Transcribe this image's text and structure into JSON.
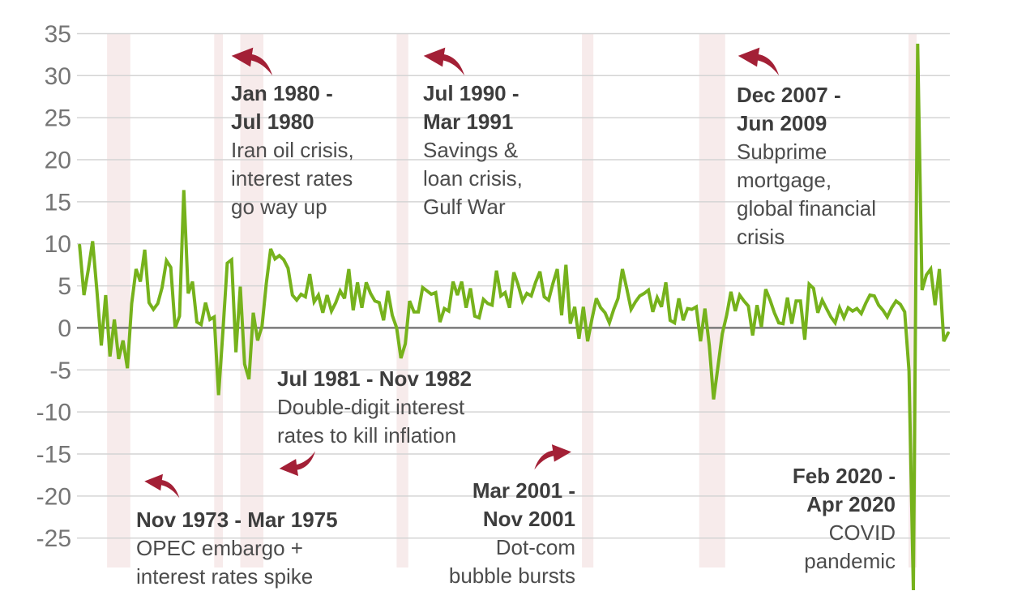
{
  "chart_data": {
    "type": "line",
    "title": "",
    "xlabel": "",
    "ylabel": "",
    "description_note": "US quarterly GDP growth (annualized %), line chart with recession shading",
    "t_start": 1972.25,
    "t_step": 0.25,
    "xlim": [
      1972.1,
      2022.35
    ],
    "ylim": [
      -28.5,
      39.0
    ],
    "yticks": [
      35,
      30,
      25,
      20,
      15,
      10,
      5,
      0,
      -5,
      -10,
      -15,
      -20,
      -25
    ],
    "grid": true,
    "values": [
      9.8,
      3.9,
      6.9,
      10.3,
      4.4,
      -2.1,
      3.9,
      -3.4,
      1.0,
      -3.7,
      -1.5,
      -4.8,
      2.9,
      7.0,
      5.5,
      9.3,
      3.0,
      2.2,
      2.9,
      4.8,
      8.0,
      7.2,
      0.0,
      1.4,
      16.4,
      4.1,
      5.5,
      0.7,
      0.4,
      3.0,
      1.0,
      1.3,
      -8.0,
      -0.5,
      7.7,
      8.1,
      -2.9,
      4.9,
      -4.3,
      -6.1,
      1.8,
      -1.5,
      0.2,
      5.3,
      9.4,
      8.2,
      8.6,
      8.1,
      7.1,
      3.9,
      3.3,
      4.0,
      3.7,
      6.4,
      3.1,
      3.9,
      1.8,
      3.9,
      2.0,
      3.0,
      4.4,
      3.5,
      7.0,
      2.1,
      5.4,
      2.4,
      5.4,
      4.1,
      3.2,
      3.0,
      0.9,
      4.4,
      1.5,
      0.0,
      -3.6,
      -1.9,
      3.2,
      1.9,
      1.9,
      4.8,
      4.4,
      4.0,
      4.2,
      0.7,
      2.3,
      2.0,
      5.5,
      3.9,
      5.5,
      2.4,
      4.7,
      1.4,
      1.2,
      3.4,
      2.9,
      2.7,
      6.8,
      3.8,
      4.2,
      2.4,
      6.6,
      5.1,
      3.2,
      4.1,
      3.8,
      5.4,
      6.7,
      3.7,
      3.3,
      5.3,
      7.0,
      1.5,
      7.5,
      0.5,
      2.5,
      -1.3,
      2.5,
      -1.6,
      1.1,
      3.5,
      2.4,
      1.8,
      0.6,
      2.2,
      3.5,
      7.0,
      4.7,
      2.2,
      3.1,
      3.8,
      4.1,
      4.5,
      1.9,
      3.6,
      2.5,
      5.4,
      0.9,
      0.6,
      3.5,
      0.9,
      2.3,
      2.2,
      2.5,
      -1.6,
      2.3,
      -2.1,
      -8.5,
      -4.6,
      -0.7,
      1.5,
      4.3,
      2.0,
      3.9,
      3.2,
      2.6,
      -0.9,
      2.7,
      0.1,
      4.6,
      3.3,
      1.8,
      0.6,
      0.5,
      3.6,
      0.5,
      3.2,
      3.2,
      -1.4,
      5.2,
      4.7,
      1.8,
      3.3,
      2.3,
      1.3,
      0.6,
      2.4,
      1.2,
      2.4,
      2.0,
      2.3,
      1.7,
      2.9,
      3.9,
      3.8,
      2.7,
      2.1,
      1.3,
      2.4,
      3.2,
      2.8,
      1.9,
      -5.1,
      -31.2,
      33.8,
      4.5,
      6.3,
      7.0,
      2.7,
      7.0,
      -1.6,
      -0.6
    ],
    "recessions": [
      {
        "label": "Nov 1973 - Mar 1975",
        "start": 1973.83,
        "end": 1975.17
      },
      {
        "label": "Jan 1980 - Jul 1980",
        "start": 1980.0,
        "end": 1980.5
      },
      {
        "label": "Jul 1981 - Nov 1982",
        "start": 1981.5,
        "end": 1982.83
      },
      {
        "label": "Jul 1990 - Mar 1991",
        "start": 1990.5,
        "end": 1991.17
      },
      {
        "label": "Mar 2001 - Nov 2001",
        "start": 2001.17,
        "end": 2001.83
      },
      {
        "label": "Dec 2007 - Jun 2009",
        "start": 2007.92,
        "end": 2009.42
      },
      {
        "label": "Feb 2020 - Apr 2020",
        "start": 2020.08,
        "end": 2020.33
      }
    ],
    "annotations": {
      "iran": {
        "title": "Jan 1980 -\nJul 1980",
        "body": "Iran oil crisis,\ninterest rates\ngo way up"
      },
      "gulf": {
        "title": "Jul 1990 -\nMar 1991",
        "body": "Savings &\nloan crisis,\nGulf War"
      },
      "subprime": {
        "title": "Dec 2007 -\nJun 2009",
        "body": "Subprime\nmortgage,\nglobal financial\ncrisis"
      },
      "volcker": {
        "title": "Jul 1981 - Nov 1982",
        "body": "Double-digit interest\nrates to kill inflation"
      },
      "opec": {
        "title": "Nov 1973 - Mar 1975",
        "body": "OPEC embargo +\ninterest rates spike"
      },
      "dotcom": {
        "title": "Mar 2001 -\nNov 2001",
        "body": "Dot-com\nbubble bursts"
      },
      "covid": {
        "title": "Feb 2020 -\nApr 2020",
        "body": "COVID\npandemic"
      }
    },
    "colors": {
      "line": "#76b21c",
      "recession_band": "#f7ebeb",
      "arrow": "#a32036",
      "grid": "#d4d4d4",
      "zero_line": "#7a7a7a",
      "tick_label": "#757575",
      "annotation_title": "#3d3d3d",
      "annotation_body": "#4c4c4c",
      "background": "#ffffff"
    }
  }
}
